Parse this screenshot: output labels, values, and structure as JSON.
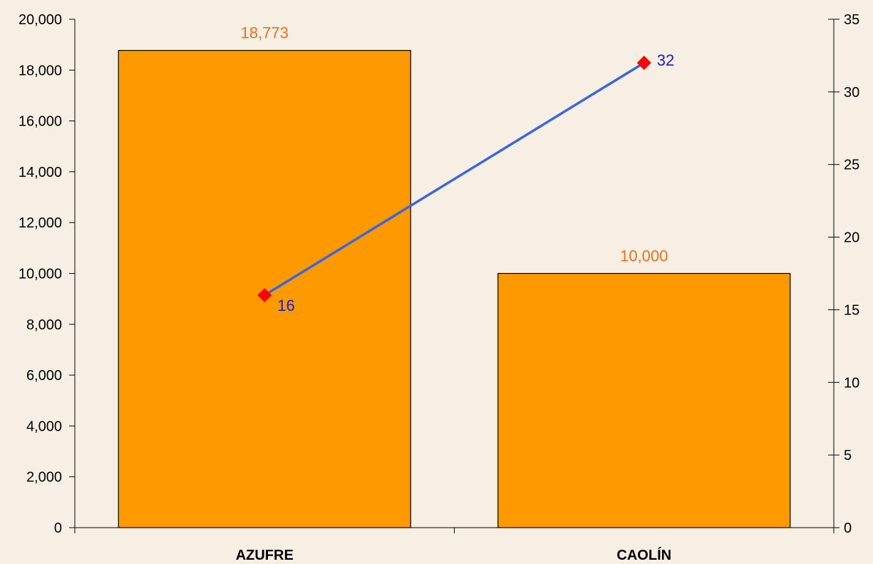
{
  "chart_data": {
    "type": "bar",
    "categories": [
      "AZUFRE",
      "CAOLÍN"
    ],
    "series": [
      {
        "chart_type": "bar",
        "axis": "left",
        "values": [
          18773,
          10000
        ],
        "value_labels": [
          "18,773",
          "10,000"
        ],
        "color": "#ff9900",
        "label_color": "#e8701a"
      },
      {
        "chart_type": "line",
        "axis": "right",
        "values": [
          16,
          32
        ],
        "value_labels": [
          "16",
          "32"
        ],
        "color": "#3a66e0",
        "marker_color": "#ff0000",
        "label_color": "#1a1acc"
      }
    ],
    "left_axis": {
      "ylim": [
        0,
        20000
      ],
      "ticks": [
        0,
        2000,
        4000,
        6000,
        8000,
        10000,
        12000,
        14000,
        16000,
        18000,
        20000
      ],
      "tick_labels": [
        "0",
        "2,000",
        "4,000",
        "6,000",
        "8,000",
        "10,000",
        "12,000",
        "14,000",
        "16,000",
        "18,000",
        "20,000"
      ]
    },
    "right_axis": {
      "ylim": [
        0,
        35
      ],
      "ticks": [
        0,
        5,
        10,
        15,
        20,
        25,
        30,
        35
      ],
      "tick_labels": [
        "0",
        "5",
        "10",
        "15",
        "20",
        "25",
        "30",
        "35"
      ]
    },
    "grid": false,
    "legend": "none",
    "colors": {
      "background": "#f7efe3",
      "axis": "#000000"
    }
  }
}
